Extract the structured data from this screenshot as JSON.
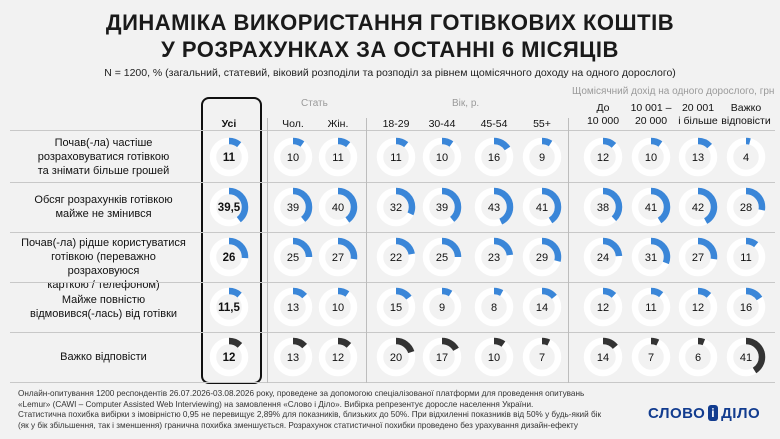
{
  "title": {
    "line1": "ДИНАМІКА ВИКОРИСТАННЯ ГОТІВКОВИХ КОШТІВ",
    "line2": "У РОЗРАХУНКАХ ЗА ОСТАННІ 6 МІСЯЦІВ"
  },
  "subtitle": "N = 1200, % (загальний, статевий, віковий розподіли та розподіл за рівнем щомісячного доходу на одного дорослого)",
  "groups": {
    "gender": "Стать",
    "age": "Вік, р.",
    "income": "Щомісячний дохід на одного дорослого, грн"
  },
  "columns": {
    "all": [
      "Усі"
    ],
    "male": [
      "Чол."
    ],
    "female": [
      "Жін."
    ],
    "age1": [
      "18-29"
    ],
    "age2": [
      "30-44"
    ],
    "age3": [
      "45-54"
    ],
    "age4": [
      "55+"
    ],
    "inc1": [
      "До",
      "10 000"
    ],
    "inc2": [
      "10 001 –",
      "20 000"
    ],
    "inc3": [
      "20 001",
      "і більше"
    ],
    "inc4": [
      "Важко",
      "відповісти"
    ]
  },
  "rows": [
    {
      "label": [
        "Почав(-ла) частіше",
        "розраховуватися готівкою",
        "та знімати більше грошей"
      ]
    },
    {
      "label": [
        "Обсяг розрахунків готівкою",
        "майже не змінився"
      ]
    },
    {
      "label": [
        "Почав(-ла) рідше користуватися",
        "готівкою (переважно розраховуюся",
        "карткою / телефоном)"
      ]
    },
    {
      "label": [
        "Майже повністю",
        "відмовився(-лась) від готівки"
      ]
    },
    {
      "label": [
        "Важко відповісти"
      ]
    }
  ],
  "chart_data": {
    "type": "table",
    "columns": [
      "Усі",
      "Чол.",
      "Жін.",
      "18-29",
      "30-44",
      "45-54",
      "55+",
      "До 10 000",
      "10 001 – 20 000",
      "20 001 і більше",
      "Важко відповісти"
    ],
    "rows": [
      {
        "name": "Почав(-ла) частіше розраховуватися готівкою та знімати більше грошей",
        "values": [
          "11",
          "10",
          "11",
          "11",
          "10",
          "16",
          "9",
          "12",
          "10",
          "13",
          "4"
        ]
      },
      {
        "name": "Обсяг розрахунків готівкою майже не змінився",
        "values": [
          "39,5",
          "39",
          "40",
          "32",
          "39",
          "43",
          "41",
          "38",
          "41",
          "42",
          "28"
        ]
      },
      {
        "name": "Почав(-ла) рідше користуватися готівкою (переважно розраховуюся карткою / телефоном)",
        "values": [
          "26",
          "25",
          "27",
          "22",
          "25",
          "23",
          "29",
          "24",
          "31",
          "27",
          "11"
        ]
      },
      {
        "name": "Майже повністю відмовився(-лась) від готівки",
        "values": [
          "11,5",
          "13",
          "10",
          "15",
          "9",
          "8",
          "14",
          "12",
          "11",
          "12",
          "16"
        ]
      },
      {
        "name": "Важко відповісти",
        "values": [
          "12",
          "13",
          "12",
          "20",
          "17",
          "10",
          "7",
          "14",
          "7",
          "6",
          "41"
        ]
      }
    ],
    "colors": {
      "highlight": "#3a86d8",
      "last_row": "#333333",
      "track": "#ffffff"
    }
  },
  "footnote": [
    "Онлайн-опитування 1200 респондентів 26.07.2026-03.08.2026 року, проведене за допомогою спеціалізованої платформи для проведення опитувань",
    "«Lemur» (CAWI – Computer Assisted Web Interviewing) на замовлення «Слово і Діло». Вибірка репрезентує доросле населення України.",
    "Статистична похибка вибірки з імовірністю 0,95 не перевищує 2,89% для показників, близьких до 50%. При відхиленні показників від 50% у будь-який бік",
    "(як у бік збільшення, так і зменшення) гранична похибка зменшується. Розрахунок статистичної похибки проведено без урахування дизайн-ефекту"
  ],
  "logo": {
    "left": "СЛОВО",
    "amp": "і",
    "right": "ДІЛО"
  }
}
